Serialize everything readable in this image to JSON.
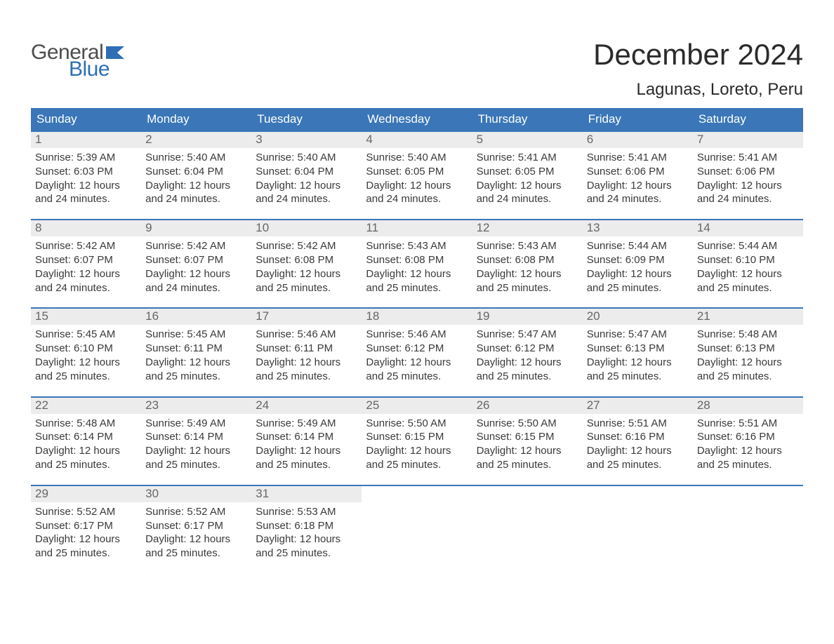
{
  "logo": {
    "text_general": "General",
    "text_blue": "Blue",
    "icon_color": "#2f6eb5",
    "text_gray": "#4c4c4c"
  },
  "title": "December 2024",
  "location": "Lagunas, Loreto, Peru",
  "colors": {
    "header_bg": "#3a76b8",
    "header_text": "#ffffff",
    "daynum_bg": "#ececec",
    "daynum_text": "#666666",
    "body_text": "#3a3a3a",
    "week_border": "#3a76b8"
  },
  "weekdays": [
    "Sunday",
    "Monday",
    "Tuesday",
    "Wednesday",
    "Thursday",
    "Friday",
    "Saturday"
  ],
  "weeks": [
    [
      {
        "n": "1",
        "sunrise": "Sunrise: 5:39 AM",
        "sunset": "Sunset: 6:03 PM",
        "dl1": "Daylight: 12 hours",
        "dl2": "and 24 minutes."
      },
      {
        "n": "2",
        "sunrise": "Sunrise: 5:40 AM",
        "sunset": "Sunset: 6:04 PM",
        "dl1": "Daylight: 12 hours",
        "dl2": "and 24 minutes."
      },
      {
        "n": "3",
        "sunrise": "Sunrise: 5:40 AM",
        "sunset": "Sunset: 6:04 PM",
        "dl1": "Daylight: 12 hours",
        "dl2": "and 24 minutes."
      },
      {
        "n": "4",
        "sunrise": "Sunrise: 5:40 AM",
        "sunset": "Sunset: 6:05 PM",
        "dl1": "Daylight: 12 hours",
        "dl2": "and 24 minutes."
      },
      {
        "n": "5",
        "sunrise": "Sunrise: 5:41 AM",
        "sunset": "Sunset: 6:05 PM",
        "dl1": "Daylight: 12 hours",
        "dl2": "and 24 minutes."
      },
      {
        "n": "6",
        "sunrise": "Sunrise: 5:41 AM",
        "sunset": "Sunset: 6:06 PM",
        "dl1": "Daylight: 12 hours",
        "dl2": "and 24 minutes."
      },
      {
        "n": "7",
        "sunrise": "Sunrise: 5:41 AM",
        "sunset": "Sunset: 6:06 PM",
        "dl1": "Daylight: 12 hours",
        "dl2": "and 24 minutes."
      }
    ],
    [
      {
        "n": "8",
        "sunrise": "Sunrise: 5:42 AM",
        "sunset": "Sunset: 6:07 PM",
        "dl1": "Daylight: 12 hours",
        "dl2": "and 24 minutes."
      },
      {
        "n": "9",
        "sunrise": "Sunrise: 5:42 AM",
        "sunset": "Sunset: 6:07 PM",
        "dl1": "Daylight: 12 hours",
        "dl2": "and 24 minutes."
      },
      {
        "n": "10",
        "sunrise": "Sunrise: 5:42 AM",
        "sunset": "Sunset: 6:08 PM",
        "dl1": "Daylight: 12 hours",
        "dl2": "and 25 minutes."
      },
      {
        "n": "11",
        "sunrise": "Sunrise: 5:43 AM",
        "sunset": "Sunset: 6:08 PM",
        "dl1": "Daylight: 12 hours",
        "dl2": "and 25 minutes."
      },
      {
        "n": "12",
        "sunrise": "Sunrise: 5:43 AM",
        "sunset": "Sunset: 6:08 PM",
        "dl1": "Daylight: 12 hours",
        "dl2": "and 25 minutes."
      },
      {
        "n": "13",
        "sunrise": "Sunrise: 5:44 AM",
        "sunset": "Sunset: 6:09 PM",
        "dl1": "Daylight: 12 hours",
        "dl2": "and 25 minutes."
      },
      {
        "n": "14",
        "sunrise": "Sunrise: 5:44 AM",
        "sunset": "Sunset: 6:10 PM",
        "dl1": "Daylight: 12 hours",
        "dl2": "and 25 minutes."
      }
    ],
    [
      {
        "n": "15",
        "sunrise": "Sunrise: 5:45 AM",
        "sunset": "Sunset: 6:10 PM",
        "dl1": "Daylight: 12 hours",
        "dl2": "and 25 minutes."
      },
      {
        "n": "16",
        "sunrise": "Sunrise: 5:45 AM",
        "sunset": "Sunset: 6:11 PM",
        "dl1": "Daylight: 12 hours",
        "dl2": "and 25 minutes."
      },
      {
        "n": "17",
        "sunrise": "Sunrise: 5:46 AM",
        "sunset": "Sunset: 6:11 PM",
        "dl1": "Daylight: 12 hours",
        "dl2": "and 25 minutes."
      },
      {
        "n": "18",
        "sunrise": "Sunrise: 5:46 AM",
        "sunset": "Sunset: 6:12 PM",
        "dl1": "Daylight: 12 hours",
        "dl2": "and 25 minutes."
      },
      {
        "n": "19",
        "sunrise": "Sunrise: 5:47 AM",
        "sunset": "Sunset: 6:12 PM",
        "dl1": "Daylight: 12 hours",
        "dl2": "and 25 minutes."
      },
      {
        "n": "20",
        "sunrise": "Sunrise: 5:47 AM",
        "sunset": "Sunset: 6:13 PM",
        "dl1": "Daylight: 12 hours",
        "dl2": "and 25 minutes."
      },
      {
        "n": "21",
        "sunrise": "Sunrise: 5:48 AM",
        "sunset": "Sunset: 6:13 PM",
        "dl1": "Daylight: 12 hours",
        "dl2": "and 25 minutes."
      }
    ],
    [
      {
        "n": "22",
        "sunrise": "Sunrise: 5:48 AM",
        "sunset": "Sunset: 6:14 PM",
        "dl1": "Daylight: 12 hours",
        "dl2": "and 25 minutes."
      },
      {
        "n": "23",
        "sunrise": "Sunrise: 5:49 AM",
        "sunset": "Sunset: 6:14 PM",
        "dl1": "Daylight: 12 hours",
        "dl2": "and 25 minutes."
      },
      {
        "n": "24",
        "sunrise": "Sunrise: 5:49 AM",
        "sunset": "Sunset: 6:14 PM",
        "dl1": "Daylight: 12 hours",
        "dl2": "and 25 minutes."
      },
      {
        "n": "25",
        "sunrise": "Sunrise: 5:50 AM",
        "sunset": "Sunset: 6:15 PM",
        "dl1": "Daylight: 12 hours",
        "dl2": "and 25 minutes."
      },
      {
        "n": "26",
        "sunrise": "Sunrise: 5:50 AM",
        "sunset": "Sunset: 6:15 PM",
        "dl1": "Daylight: 12 hours",
        "dl2": "and 25 minutes."
      },
      {
        "n": "27",
        "sunrise": "Sunrise: 5:51 AM",
        "sunset": "Sunset: 6:16 PM",
        "dl1": "Daylight: 12 hours",
        "dl2": "and 25 minutes."
      },
      {
        "n": "28",
        "sunrise": "Sunrise: 5:51 AM",
        "sunset": "Sunset: 6:16 PM",
        "dl1": "Daylight: 12 hours",
        "dl2": "and 25 minutes."
      }
    ],
    [
      {
        "n": "29",
        "sunrise": "Sunrise: 5:52 AM",
        "sunset": "Sunset: 6:17 PM",
        "dl1": "Daylight: 12 hours",
        "dl2": "and 25 minutes."
      },
      {
        "n": "30",
        "sunrise": "Sunrise: 5:52 AM",
        "sunset": "Sunset: 6:17 PM",
        "dl1": "Daylight: 12 hours",
        "dl2": "and 25 minutes."
      },
      {
        "n": "31",
        "sunrise": "Sunrise: 5:53 AM",
        "sunset": "Sunset: 6:18 PM",
        "dl1": "Daylight: 12 hours",
        "dl2": "and 25 minutes."
      },
      {
        "empty": true
      },
      {
        "empty": true
      },
      {
        "empty": true
      },
      {
        "empty": true
      }
    ]
  ]
}
